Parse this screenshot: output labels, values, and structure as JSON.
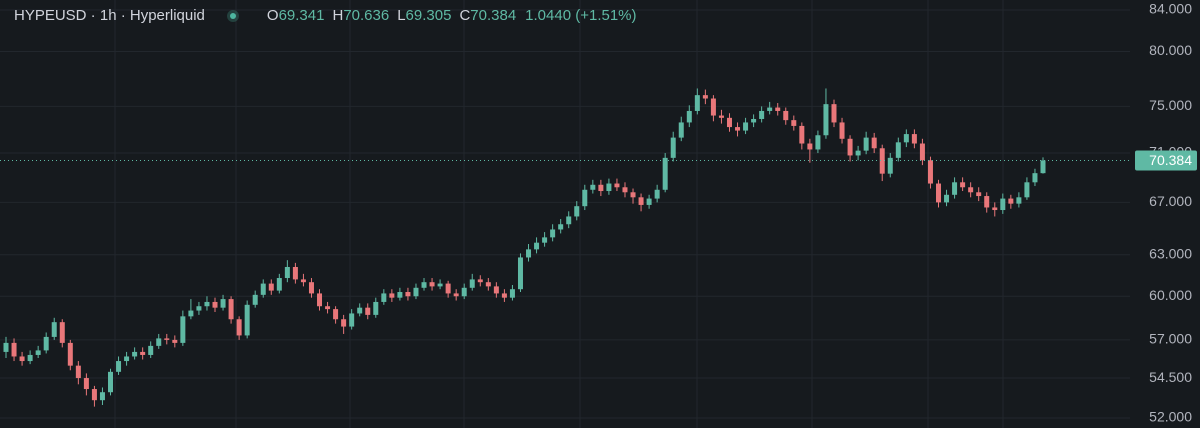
{
  "chart_data": {
    "type": "candlestick",
    "title": "HYPEUSD · 1h · Hyperliquid",
    "ohlc_labels": [
      "O",
      "H",
      "L",
      "C"
    ],
    "change": "1.0440 (+1.51%)",
    "up_color": "#5fb9a4",
    "down_color": "#e9777a",
    "log_scale": true,
    "grid": true,
    "ylim": [
      52,
      84
    ],
    "yticks": [
      {
        "value": 52,
        "label": "52.000"
      },
      {
        "value": 54.5,
        "label": "54.500"
      },
      {
        "value": 57,
        "label": "57.000"
      },
      {
        "value": 60,
        "label": "60.000"
      },
      {
        "value": 63,
        "label": "63.000"
      },
      {
        "value": 67,
        "label": "67.000"
      },
      {
        "value": 71,
        "label": "71.000"
      },
      {
        "value": 75,
        "label": "75.000"
      },
      {
        "value": 80,
        "label": "80.000"
      },
      {
        "value": 84,
        "label": "84.000"
      }
    ],
    "open": [
      56.2,
      56.8,
      55.9,
      55.6,
      56.0,
      56.3,
      57.2,
      58.2,
      56.8,
      55.3,
      54.5,
      53.8,
      53.1,
      53.6,
      54.9,
      55.6,
      55.9,
      56.2,
      56.0,
      56.6,
      57.1,
      57.0,
      56.8,
      58.6,
      59.0,
      59.3,
      59.6,
      59.2,
      59.8,
      58.4,
      57.3,
      59.4,
      60.1,
      60.9,
      60.4,
      61.3,
      62.1,
      61.2,
      61.0,
      60.2,
      59.3,
      59.1,
      58.4,
      57.9,
      58.8,
      59.2,
      58.7,
      59.6,
      60.2,
      59.9,
      60.3,
      60.0,
      60.6,
      61.0,
      60.7,
      60.9,
      60.2,
      60.0,
      60.6,
      61.2,
      61.0,
      60.7,
      60.2,
      59.9,
      60.5,
      62.8,
      63.4,
      63.9,
      64.3,
      64.9,
      65.3,
      65.9,
      66.7,
      68.0,
      68.4,
      67.9,
      68.5,
      68.2,
      67.8,
      67.4,
      66.8,
      67.3,
      68.0,
      70.6,
      72.3,
      73.6,
      74.6,
      76.0,
      75.7,
      74.2,
      74.0,
      73.2,
      72.9,
      73.6,
      73.9,
      74.6,
      74.9,
      74.6,
      73.8,
      73.3,
      71.8,
      71.3,
      72.5,
      75.2,
      73.6,
      72.2,
      70.8,
      71.2,
      72.3,
      71.4,
      69.3,
      70.6,
      71.9,
      72.6,
      71.8,
      70.4,
      68.5,
      67.0,
      67.6,
      68.6,
      68.2,
      67.8,
      67.5,
      66.6,
      66.4,
      67.3,
      66.9,
      67.4,
      68.6,
      69.341
    ],
    "high": [
      57.2,
      57.1,
      56.2,
      56.3,
      56.6,
      57.5,
      58.5,
      58.4,
      57.0,
      55.6,
      54.8,
      54.0,
      53.9,
      55.1,
      55.9,
      56.2,
      56.5,
      56.5,
      56.9,
      57.4,
      57.4,
      57.3,
      59.0,
      59.8,
      59.6,
      60.0,
      59.9,
      60.1,
      60.0,
      58.6,
      59.7,
      60.4,
      61.2,
      61.2,
      61.6,
      62.6,
      62.4,
      61.6,
      61.3,
      60.5,
      59.6,
      59.3,
      58.7,
      59.1,
      59.5,
      59.5,
      59.9,
      60.5,
      60.5,
      60.6,
      60.6,
      60.9,
      61.3,
      61.3,
      61.2,
      61.1,
      60.5,
      60.9,
      61.6,
      61.5,
      61.3,
      61.0,
      60.5,
      60.8,
      63.1,
      63.8,
      64.3,
      64.7,
      65.3,
      65.7,
      66.3,
      67.1,
      68.4,
      68.8,
      68.8,
      68.9,
      68.9,
      68.6,
      68.1,
      67.7,
      67.6,
      68.4,
      71.0,
      72.8,
      74.1,
      75.1,
      76.6,
      76.5,
      76.0,
      74.7,
      74.4,
      73.6,
      74.0,
      74.3,
      75.0,
      75.4,
      75.3,
      74.9,
      74.2,
      73.6,
      72.2,
      72.9,
      76.6,
      75.6,
      74.0,
      72.5,
      71.6,
      72.8,
      72.7,
      71.7,
      71.0,
      72.3,
      73.0,
      73.0,
      72.2,
      70.7,
      68.8,
      68.0,
      69.0,
      69.0,
      68.6,
      68.2,
      67.8,
      67.0,
      67.7,
      67.6,
      67.8,
      69.0,
      69.7,
      70.636
    ],
    "low": [
      55.8,
      55.6,
      55.3,
      55.4,
      55.8,
      56.1,
      57.0,
      56.5,
      55.0,
      54.1,
      53.4,
      52.7,
      52.8,
      53.4,
      54.7,
      55.3,
      55.7,
      55.7,
      55.8,
      56.4,
      56.7,
      56.5,
      56.6,
      58.4,
      58.7,
      59.0,
      58.9,
      59.0,
      58.1,
      57.0,
      57.1,
      59.2,
      59.9,
      60.1,
      60.2,
      61.0,
      60.9,
      60.7,
      59.9,
      59.0,
      58.8,
      58.1,
      57.4,
      57.7,
      58.6,
      58.4,
      58.5,
      59.4,
      59.6,
      59.7,
      59.7,
      59.8,
      60.4,
      60.4,
      60.5,
      59.9,
      59.7,
      59.8,
      60.4,
      60.7,
      60.4,
      59.9,
      59.6,
      59.7,
      60.3,
      62.5,
      63.1,
      63.6,
      64.0,
      64.6,
      65.0,
      65.6,
      66.4,
      67.7,
      67.5,
      67.6,
      67.9,
      67.4,
      66.9,
      66.3,
      66.5,
      67.0,
      67.8,
      70.3,
      72.0,
      73.2,
      74.3,
      75.2,
      73.7,
      73.5,
      72.8,
      72.4,
      72.6,
      73.2,
      73.6,
      74.3,
      74.2,
      73.4,
      72.9,
      71.3,
      70.2,
      71.0,
      72.2,
      73.2,
      71.8,
      70.3,
      70.4,
      70.9,
      71.0,
      68.7,
      69.0,
      70.3,
      71.5,
      71.4,
      70.0,
      68.1,
      66.6,
      66.7,
      67.3,
      67.9,
      67.4,
      67.1,
      66.2,
      65.9,
      66.1,
      66.5,
      66.6,
      67.2,
      68.3,
      69.305
    ],
    "close": [
      56.8,
      55.9,
      55.6,
      56.0,
      56.3,
      57.2,
      58.2,
      56.8,
      55.3,
      54.5,
      53.8,
      53.1,
      53.6,
      54.9,
      55.6,
      55.9,
      56.2,
      56.0,
      56.6,
      57.1,
      57.0,
      56.8,
      58.6,
      59.0,
      59.3,
      59.6,
      59.2,
      59.8,
      58.4,
      57.3,
      59.4,
      60.1,
      60.9,
      60.4,
      61.3,
      62.1,
      61.2,
      61.0,
      60.2,
      59.3,
      59.1,
      58.4,
      57.9,
      58.8,
      59.2,
      58.7,
      59.6,
      60.2,
      59.9,
      60.3,
      60.0,
      60.6,
      61.0,
      60.7,
      60.9,
      60.2,
      60.0,
      60.6,
      61.2,
      61.0,
      60.7,
      60.2,
      59.9,
      60.5,
      62.8,
      63.4,
      63.9,
      64.3,
      64.9,
      65.3,
      65.9,
      66.7,
      68.0,
      68.4,
      67.9,
      68.5,
      68.2,
      67.8,
      67.4,
      66.8,
      67.3,
      68.0,
      70.6,
      72.3,
      73.6,
      74.6,
      76.0,
      75.7,
      74.2,
      74.0,
      73.2,
      72.9,
      73.6,
      73.9,
      74.6,
      74.9,
      74.6,
      73.8,
      73.3,
      71.8,
      71.3,
      72.5,
      75.2,
      73.6,
      72.2,
      70.8,
      71.2,
      72.3,
      71.4,
      69.3,
      70.6,
      71.9,
      72.6,
      71.8,
      70.4,
      68.5,
      67.0,
      67.6,
      68.6,
      68.2,
      67.8,
      67.5,
      66.6,
      66.4,
      67.3,
      66.9,
      67.4,
      68.6,
      69.341,
      70.384
    ]
  }
}
